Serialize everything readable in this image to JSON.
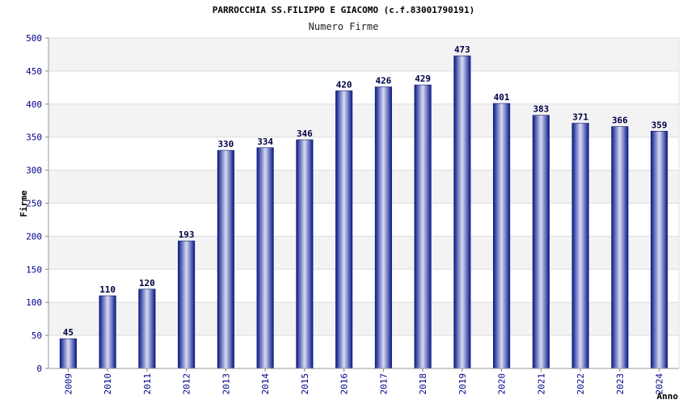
{
  "chart_data": {
    "type": "bar",
    "title": "PARROCCHIA SS.FILIPPO E GIACOMO (c.f.83001790191)",
    "subtitle": "Numero Firme",
    "xlabel": "Anno",
    "ylabel": "Firme",
    "categories": [
      "2009",
      "2010",
      "2011",
      "2012",
      "2013",
      "2014",
      "2015",
      "2016",
      "2017",
      "2018",
      "2019",
      "2020",
      "2021",
      "2022",
      "2023",
      "2024"
    ],
    "values": [
      45,
      110,
      120,
      193,
      330,
      334,
      346,
      420,
      426,
      429,
      473,
      401,
      383,
      371,
      366,
      359
    ],
    "ylim": [
      0,
      500
    ],
    "yticks": [
      0,
      50,
      100,
      150,
      200,
      250,
      300,
      350,
      400,
      450,
      500
    ],
    "grid": true,
    "colors": {
      "bar_dark": "#0a1a8a",
      "bar_light": "#d8dcf4",
      "band": "#f3f3f3",
      "grid": "#dddddd",
      "tick_text": "#00008B"
    }
  }
}
